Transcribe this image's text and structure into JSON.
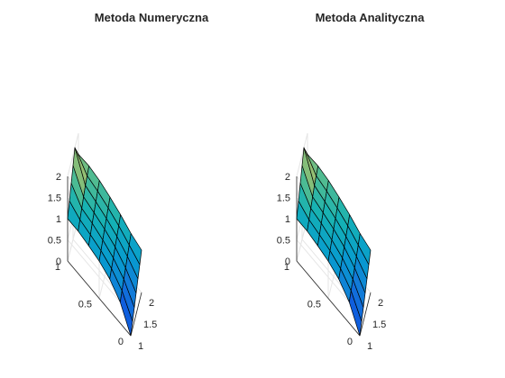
{
  "figure": {
    "background": "#ffffff"
  },
  "chart_data": [
    {
      "type": "surface",
      "title": "Metoda Numeryczna",
      "colormap": "parula",
      "x_label": "",
      "y_label": "",
      "z_label": "",
      "x_range": [
        1,
        2
      ],
      "y_range": [
        0,
        1
      ],
      "z_range": [
        0,
        2
      ],
      "x_ticks": [
        "1",
        "1.5",
        "2"
      ],
      "y_ticks": [
        "0",
        "0.5",
        "1"
      ],
      "z_ticks": [
        "0",
        "0.5",
        "1",
        "1.5",
        "2"
      ],
      "x": [
        1.0,
        1.1667,
        1.3333,
        1.5,
        1.6667,
        1.8333,
        2.0
      ],
      "y": [
        0.0,
        0.1667,
        0.3333,
        0.5,
        0.6667,
        0.8333,
        1.0
      ],
      "z": [
        [
          0.0,
          0.167,
          0.333,
          0.5,
          0.667,
          0.833,
          1.0
        ],
        [
          0.5,
          0.6,
          0.7,
          0.8,
          0.9,
          1.0,
          1.1
        ],
        [
          0.75,
          0.83,
          0.91,
          1.0,
          1.08,
          1.16,
          1.25
        ],
        [
          0.88,
          0.96,
          1.04,
          1.13,
          1.21,
          1.29,
          1.37
        ],
        [
          0.95,
          1.04,
          1.14,
          1.22,
          1.31,
          1.39,
          1.47
        ],
        [
          1.0,
          1.1,
          1.2,
          1.3,
          1.4,
          1.46,
          1.52
        ],
        [
          1.0,
          1.25,
          1.5,
          1.75,
          2.0,
          1.75,
          1.5
        ]
      ]
    },
    {
      "type": "surface",
      "title": "Metoda Analityczna",
      "colormap": "parula",
      "x_label": "",
      "y_label": "",
      "z_label": "",
      "x_range": [
        1,
        2
      ],
      "y_range": [
        0,
        1
      ],
      "z_range": [
        0,
        2
      ],
      "x_ticks": [
        "1",
        "1.5",
        "2"
      ],
      "y_ticks": [
        "0",
        "0.5",
        "1"
      ],
      "z_ticks": [
        "0",
        "0.5",
        "1",
        "1.5",
        "2"
      ],
      "x": [
        1.0,
        1.1667,
        1.3333,
        1.5,
        1.6667,
        1.8333,
        2.0
      ],
      "y": [
        0.0,
        0.1667,
        0.3333,
        0.5,
        0.6667,
        0.8333,
        1.0
      ],
      "z": [
        [
          0.0,
          0.167,
          0.333,
          0.5,
          0.667,
          0.833,
          1.0
        ],
        [
          0.5,
          0.6,
          0.7,
          0.8,
          0.9,
          1.0,
          1.1
        ],
        [
          0.75,
          0.83,
          0.91,
          1.0,
          1.08,
          1.16,
          1.25
        ],
        [
          0.88,
          0.96,
          1.04,
          1.13,
          1.21,
          1.29,
          1.37
        ],
        [
          0.95,
          1.04,
          1.14,
          1.22,
          1.31,
          1.39,
          1.47
        ],
        [
          1.0,
          1.1,
          1.2,
          1.3,
          1.4,
          1.46,
          1.52
        ],
        [
          1.0,
          1.25,
          1.5,
          1.75,
          2.0,
          1.75,
          1.5
        ]
      ]
    }
  ]
}
